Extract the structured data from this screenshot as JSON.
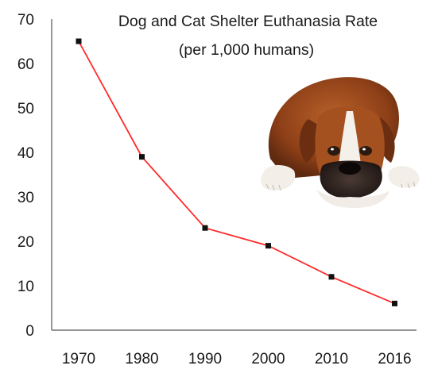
{
  "chart_data": {
    "type": "line",
    "title": "Dog and Cat Shelter Euthanasia Rate",
    "subtitle": "(per 1,000 humans)",
    "xlabel": "",
    "ylabel": "",
    "categories": [
      "1970",
      "1980",
      "1990",
      "2000",
      "2010",
      "2016"
    ],
    "series": [
      {
        "values": [
          65,
          39,
          23,
          19,
          12,
          6
        ]
      }
    ],
    "ylim": [
      0,
      70
    ],
    "yticks": [
      "0",
      "10",
      "20",
      "30",
      "40",
      "50",
      "60",
      "70"
    ],
    "grid": false,
    "line_color": "#ff2a2a",
    "marker_color": "#111111"
  },
  "illustration": {
    "icon": "boxer-dog-lying-illustration"
  }
}
